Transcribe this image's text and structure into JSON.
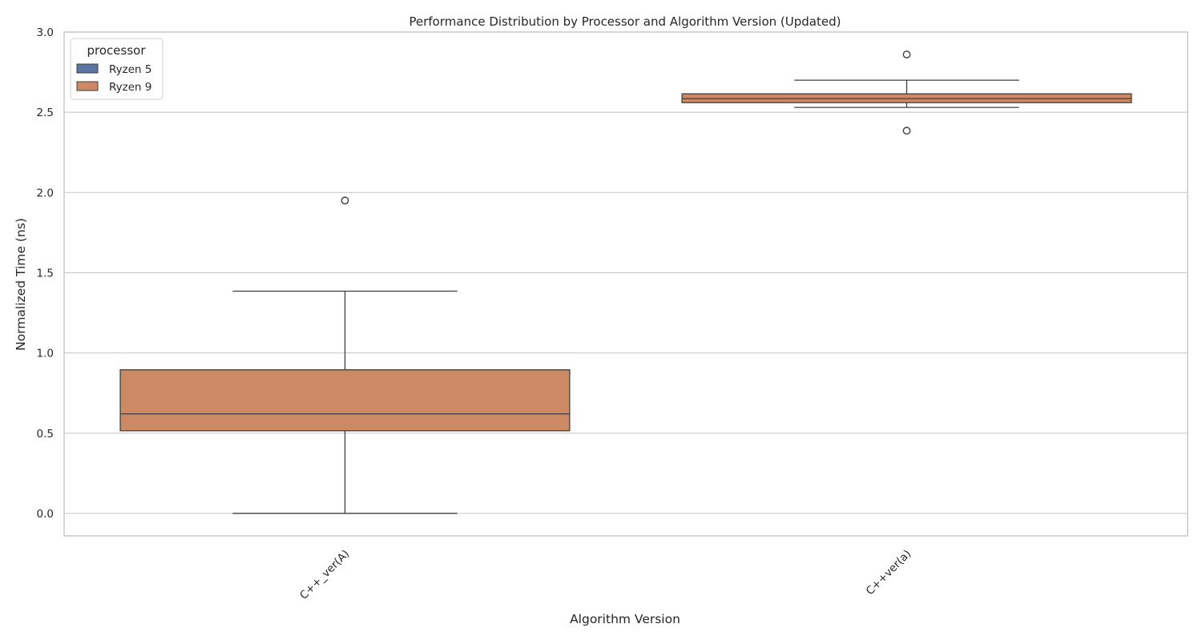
{
  "chart_data": {
    "type": "box",
    "title": "Performance Distribution by Processor and Algorithm Version (Updated)",
    "xlabel": "Algorithm Version",
    "ylabel": "Normalized Time (ns)",
    "ylim": [
      -0.14,
      3.0
    ],
    "yticks": [
      0.0,
      0.5,
      1.0,
      1.5,
      2.0,
      2.5,
      3.0
    ],
    "ytick_labels": [
      "0.0",
      "0.5",
      "1.0",
      "1.5",
      "2.0",
      "2.5",
      "3.0"
    ],
    "grid": true,
    "categories": [
      "C++_ver(A)",
      "C++ver(a)"
    ],
    "legend": {
      "title": "processor",
      "placement": "top-left",
      "entries": [
        {
          "name": "Ryzen 5",
          "color": "#5875a4"
        },
        {
          "name": "Ryzen 9",
          "color": "#cc8963"
        }
      ]
    },
    "series": [
      {
        "name": "Ryzen 9",
        "color": "#cc8963",
        "boxes": [
          {
            "category": "C++_ver(A)",
            "whisker_low": 0.0,
            "q1": 0.515,
            "median": 0.62,
            "q3": 0.895,
            "whisker_high": 1.385,
            "outliers": [
              1.95
            ]
          },
          {
            "category": "C++ver(a)",
            "whisker_low": 2.53,
            "q1": 2.56,
            "median": 2.585,
            "q3": 2.615,
            "whisker_high": 2.7,
            "outliers": [
              2.86,
              2.385
            ]
          }
        ]
      }
    ]
  }
}
